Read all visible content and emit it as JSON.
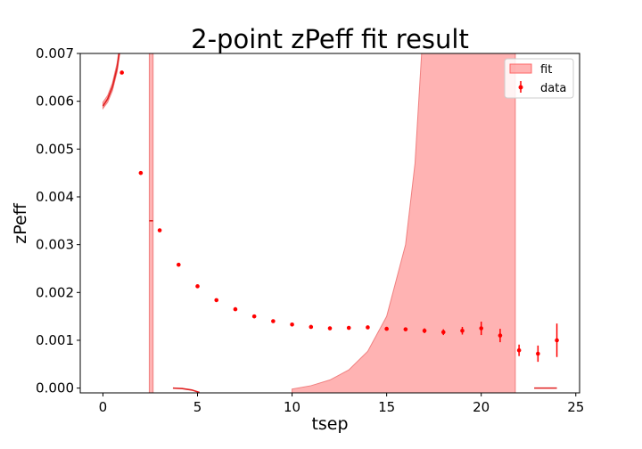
{
  "chart_data": {
    "type": "scatter",
    "title": "2-point zPeff fit result",
    "xlabel": "tsep",
    "ylabel": "zPeff",
    "xlim": [
      -1.2,
      25.2
    ],
    "ylim": [
      -0.0001,
      0.007
    ],
    "xticks": [
      0,
      5,
      10,
      15,
      20,
      25
    ],
    "xtick_labels": [
      "0",
      "5",
      "10",
      "15",
      "20",
      "25"
    ],
    "yticks": [
      0.0,
      0.001,
      0.002,
      0.003,
      0.004,
      0.005,
      0.006,
      0.007
    ],
    "ytick_labels": [
      "0.000",
      "0.001",
      "0.002",
      "0.003",
      "0.004",
      "0.005",
      "0.006",
      "0.007"
    ],
    "grid": false,
    "legend_position": "top-right",
    "legend": [
      "fit",
      "data"
    ],
    "colors": {
      "data": "#ff0000",
      "fit_line": "#e02020",
      "fit_band": "#ff9999"
    },
    "series": [
      {
        "name": "data",
        "x": [
          1,
          2,
          3,
          4,
          5,
          6,
          7,
          8,
          9,
          10,
          11,
          12,
          13,
          14,
          15,
          16,
          17,
          18,
          19,
          20,
          21,
          22,
          23,
          24
        ],
        "y": [
          0.0066,
          0.0045,
          0.0033,
          0.00258,
          0.00213,
          0.00184,
          0.00165,
          0.0015,
          0.0014,
          0.00133,
          0.00128,
          0.00125,
          0.00126,
          0.00127,
          0.00124,
          0.00123,
          0.0012,
          0.00117,
          0.0012,
          0.00125,
          0.0011,
          0.00079,
          0.00072,
          0.001
        ],
        "yerr": [
          1e-05,
          1e-05,
          1e-05,
          1e-05,
          1e-05,
          1e-05,
          1e-05,
          1e-05,
          1e-05,
          1e-05,
          1e-05,
          1e-05,
          2e-05,
          2e-05,
          3e-05,
          4e-05,
          5e-05,
          6e-05,
          8e-05,
          0.00014,
          0.00014,
          0.00012,
          0.00017,
          0.00035
        ]
      },
      {
        "name": "fit",
        "type": "band",
        "segments": [
          {
            "x": [
              0,
              0.25,
              0.5,
              0.75,
              1.0
            ],
            "y": [
              0.0059,
              0.00605,
              0.0063,
              0.0067,
              0.0074
            ],
            "lower": [
              0.00585,
              0.00598,
              0.00622,
              0.00662,
              0.0073
            ],
            "upper": [
              0.00598,
              0.00612,
              0.00638,
              0.0068,
              0.0075
            ]
          },
          {
            "x": [
              2.45,
              2.65
            ],
            "y": [
              0.0035,
              0.0035
            ],
            "lower": [
              -0.001,
              -0.001
            ],
            "upper": [
              0.008,
              0.008
            ]
          },
          {
            "x": [
              3.7,
              4.2,
              4.7,
              5.1
            ],
            "y": [
              0.0,
              -1e-05,
              -4e-05,
              -9e-05
            ]
          },
          {
            "x": [
              10,
              11,
              12,
              13,
              14,
              15,
              16,
              16.5,
              17,
              17.5,
              18,
              19,
              20,
              21,
              21.8
            ],
            "lower": [
              -0.001,
              -0.001,
              -0.001,
              -0.001,
              -0.001,
              -0.001,
              -0.001,
              -0.001,
              -0.001,
              -0.001,
              -0.001,
              -0.001,
              -0.001,
              -0.001,
              -0.001
            ],
            "upper": [
              -2e-05,
              5e-05,
              0.00017,
              0.00038,
              0.00077,
              0.0015,
              0.003,
              0.0047,
              0.008,
              0.008,
              0.008,
              0.008,
              0.008,
              0.008,
              0.008
            ]
          },
          {
            "x": [
              22.8,
              24
            ],
            "y": [
              0.0,
              0.0
            ]
          }
        ]
      }
    ]
  }
}
